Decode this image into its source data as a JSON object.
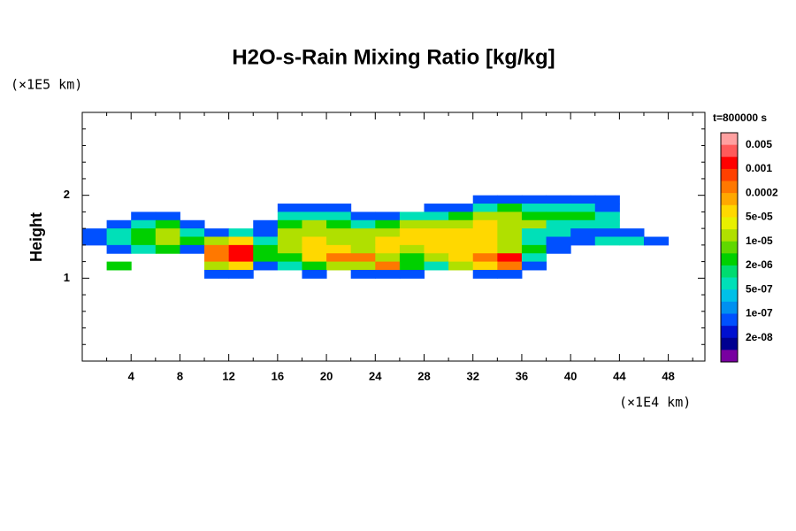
{
  "chart_data": {
    "type": "contour",
    "title": "H2O-s-Rain Mixing Ratio [kg/kg]",
    "ylabel": "Height",
    "y_unit": "(×1E5 km)",
    "x_unit": "(×1E4 km)",
    "colorbar_title": "t=800000 s",
    "xlim": [
      0,
      51
    ],
    "ylim": [
      0,
      3
    ],
    "xticks": [
      4,
      8,
      12,
      16,
      20,
      24,
      28,
      32,
      36,
      40,
      44,
      48
    ],
    "yticks": [
      1,
      2
    ],
    "levels": [
      0.005,
      0.001,
      0.0002,
      {
        "value": 5e-05,
        "label": "5e-05"
      },
      {
        "value": 1e-05,
        "label": "1e-05"
      },
      {
        "value": 2e-06,
        "label": "2e-06"
      },
      {
        "value": 5e-07,
        "label": "5e-07"
      },
      {
        "value": 1e-07,
        "label": "1e-07"
      },
      {
        "value": 2e-08,
        "label": "2e-08"
      }
    ],
    "colors": [
      "#ffa0a0",
      "#ff5a5a",
      "#ff0000",
      "#ff4000",
      "#ff7800",
      "#ffa800",
      "#ffd800",
      "#e8f000",
      "#b0e000",
      "#60d800",
      "#00d000",
      "#00dc70",
      "#00e0b8",
      "#00c0e8",
      "#0090f0",
      "#0050ff",
      "#0010d0",
      "#000090",
      "#7800a0"
    ],
    "x": [
      1,
      3,
      5,
      7,
      9,
      11,
      13,
      15,
      17,
      19,
      21,
      23,
      25,
      27,
      29,
      31,
      33,
      35,
      37,
      39,
      41,
      43,
      45,
      47,
      49
    ],
    "y": [
      1.95,
      1.85,
      1.75,
      1.65,
      1.55,
      1.45,
      1.35,
      1.25,
      1.15,
      1.05
    ],
    "z": [
      [
        null,
        null,
        null,
        null,
        null,
        null,
        null,
        null,
        null,
        null,
        null,
        null,
        null,
        null,
        null,
        null,
        1e-07,
        1e-07,
        1e-07,
        1e-07,
        1e-07,
        1e-07,
        null,
        null,
        null
      ],
      [
        null,
        null,
        null,
        null,
        null,
        null,
        null,
        null,
        1e-07,
        1e-07,
        1e-07,
        null,
        null,
        null,
        1e-07,
        1e-07,
        6e-07,
        3e-06,
        6e-07,
        6e-07,
        6e-07,
        1e-07,
        null,
        null,
        null
      ],
      [
        null,
        null,
        1e-07,
        1e-07,
        null,
        null,
        null,
        null,
        6e-07,
        6e-07,
        6e-07,
        1e-07,
        1e-07,
        6e-07,
        6e-07,
        3e-06,
        1.5e-05,
        1.5e-05,
        3e-06,
        3e-06,
        3e-06,
        6e-07,
        null,
        null,
        null
      ],
      [
        null,
        1e-07,
        6e-07,
        3e-06,
        1e-07,
        null,
        null,
        1e-07,
        3e-06,
        1.5e-05,
        3e-06,
        6e-07,
        3e-06,
        1.5e-05,
        1.5e-05,
        1.5e-05,
        6e-05,
        1.5e-05,
        1.5e-05,
        6e-07,
        6e-07,
        6e-07,
        null,
        null,
        null
      ],
      [
        1e-07,
        6e-07,
        3e-06,
        1.5e-05,
        6e-07,
        1e-07,
        6e-07,
        1e-07,
        1.5e-05,
        1.5e-05,
        1.5e-05,
        1.5e-05,
        1.5e-05,
        6e-05,
        6e-05,
        6e-05,
        6e-05,
        1.5e-05,
        6e-07,
        6e-07,
        1e-07,
        1e-07,
        1e-07,
        null,
        null
      ],
      [
        1e-07,
        6e-07,
        3e-06,
        1.5e-05,
        3e-06,
        1.5e-05,
        6e-05,
        6e-07,
        1.5e-05,
        6e-05,
        1.5e-05,
        1.5e-05,
        6e-05,
        6e-05,
        6e-05,
        6e-05,
        6e-05,
        1.5e-05,
        6e-07,
        1e-07,
        1e-07,
        6e-07,
        6e-07,
        1e-07,
        null
      ],
      [
        null,
        1e-07,
        6e-07,
        3e-06,
        1e-07,
        0.0003,
        0.0015,
        3e-06,
        1.5e-05,
        6e-05,
        6e-05,
        1.5e-05,
        6e-05,
        1.5e-05,
        6e-05,
        6e-05,
        6e-05,
        1.5e-05,
        3e-06,
        1e-07,
        null,
        null,
        null,
        null,
        null
      ],
      [
        null,
        null,
        null,
        null,
        null,
        0.0003,
        0.0015,
        3e-06,
        3e-06,
        6e-05,
        0.0003,
        0.0003,
        1.5e-05,
        3e-06,
        1.5e-05,
        6e-05,
        0.0003,
        0.0015,
        6e-07,
        null,
        null,
        null,
        null,
        null,
        null
      ],
      [
        null,
        3e-06,
        null,
        null,
        null,
        1.5e-05,
        6e-05,
        1e-07,
        6e-07,
        3e-06,
        1.5e-05,
        1.5e-05,
        0.0003,
        3e-06,
        6e-07,
        1.5e-05,
        6e-05,
        0.0003,
        1e-07,
        null,
        null,
        null,
        null,
        null,
        null
      ],
      [
        null,
        null,
        null,
        null,
        null,
        1e-07,
        1e-07,
        null,
        null,
        1e-07,
        null,
        1e-07,
        1e-07,
        1e-07,
        null,
        null,
        1e-07,
        1e-07,
        null,
        null,
        null,
        null,
        null,
        null,
        null
      ]
    ]
  }
}
